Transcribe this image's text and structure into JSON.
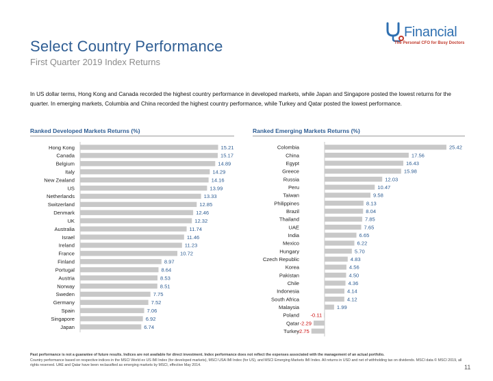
{
  "header": {
    "title": "Select Country Performance",
    "subtitle": "First Quarter 2019 Index Returns"
  },
  "logo": {
    "text": "Financial",
    "tagline": "The Personal CFO for Busy Doctors",
    "brand_color": "#2e6fb0",
    "accent_color": "#c0392b"
  },
  "intro_text": "In US dollar terms, Hong Kong and Canada recorded the highest country performance in developed markets, while Japan and Singapore posted the lowest returns for the quarter. In emerging markets, Columbia and China recorded the highest country performance, while Turkey and Qatar posted the lowest performance.",
  "colors": {
    "bar": "#c8c8c8",
    "positive_label": "#2e5d93",
    "negative_label": "#cc1111",
    "title": "#2e5d93"
  },
  "chart_data": [
    {
      "type": "bar",
      "orientation": "horizontal",
      "title": "Ranked Developed Markets Returns (%)",
      "categories": [
        "Hong Kong",
        "Canada",
        "Belgium",
        "Italy",
        "New Zealand",
        "US",
        "Netherlands",
        "Switzerland",
        "Denmark",
        "UK",
        "Australia",
        "Israel",
        "Ireland",
        "France",
        "Finland",
        "Portugal",
        "Austria",
        "Norway",
        "Sweden",
        "Germany",
        "Spain",
        "Singapore",
        "Japan"
      ],
      "values": [
        15.21,
        15.17,
        14.89,
        14.29,
        14.16,
        13.99,
        13.33,
        12.85,
        12.46,
        12.32,
        11.74,
        11.46,
        11.23,
        10.72,
        8.97,
        8.64,
        8.53,
        8.51,
        7.75,
        7.52,
        7.06,
        6.92,
        6.74
      ],
      "labels": [
        "15.21",
        "15.17",
        "14.89",
        "14.29",
        "14.16",
        "13.99",
        "13.33",
        "12.85",
        "12.46",
        "12.32",
        "11.74",
        "11.46",
        "11.23",
        "10.72",
        "8.97",
        "8.64",
        "8.53",
        "8.51",
        "7.75",
        "7.52",
        "7.06",
        "6.92",
        "6.74"
      ],
      "xlim": [
        0,
        16
      ],
      "grid": false,
      "legend": "none"
    },
    {
      "type": "bar",
      "orientation": "horizontal",
      "title": "Ranked Emerging Markets Returns (%)",
      "categories": [
        "Colombia",
        "China",
        "Egypt",
        "Greece",
        "Russia",
        "Peru",
        "Taiwan",
        "Philippines",
        "Brazil",
        "Thailand",
        "UAE",
        "India",
        "Mexico",
        "Hungary",
        "Czech Republic",
        "Korea",
        "Pakistan",
        "Chile",
        "Indonesia",
        "South Africa",
        "Malaysia",
        "Poland",
        "Qatar",
        "Turkey"
      ],
      "values": [
        25.42,
        17.56,
        16.43,
        15.98,
        12.03,
        10.47,
        9.58,
        8.13,
        8.04,
        7.85,
        7.65,
        6.65,
        6.22,
        5.7,
        4.83,
        4.56,
        4.5,
        4.36,
        4.14,
        4.12,
        1.99,
        -0.11,
        -2.29,
        -2.75
      ],
      "labels": [
        "25.42",
        "17.56",
        "16.43",
        "15.98",
        "12.03",
        "10.47",
        "9.58",
        "8.13",
        "8.04",
        "7.85",
        "7.65",
        "6.65",
        "6.22",
        "5.70",
        "4.83",
        "4.56",
        "4.50",
        "4.36",
        "4.14",
        "4.12",
        "1.99",
        "-0.11",
        "-2.29",
        "-2.75"
      ],
      "xlim": [
        -3,
        26
      ],
      "grid": false,
      "legend": "none"
    }
  ],
  "footnote": {
    "bold": "Past performance is not a guarantee of future results. Indices are not available for direct investment. Index performance does not reflect the expenses associated with the management of an actual portfolio.",
    "text": "Country performance based on respective indices in the MSCI World ex US IMI Index (for developed markets), MSCI USA IMI Index (for US), and MSCI Emerging Markets IMI Index. All returns in USD and net of withholding tax on dividends. MSCI data © MSCI 2019, all rights reserved. UAE and Qatar have been reclassified as emerging markets by MSCI, effective May 2014."
  },
  "page_number": "11"
}
